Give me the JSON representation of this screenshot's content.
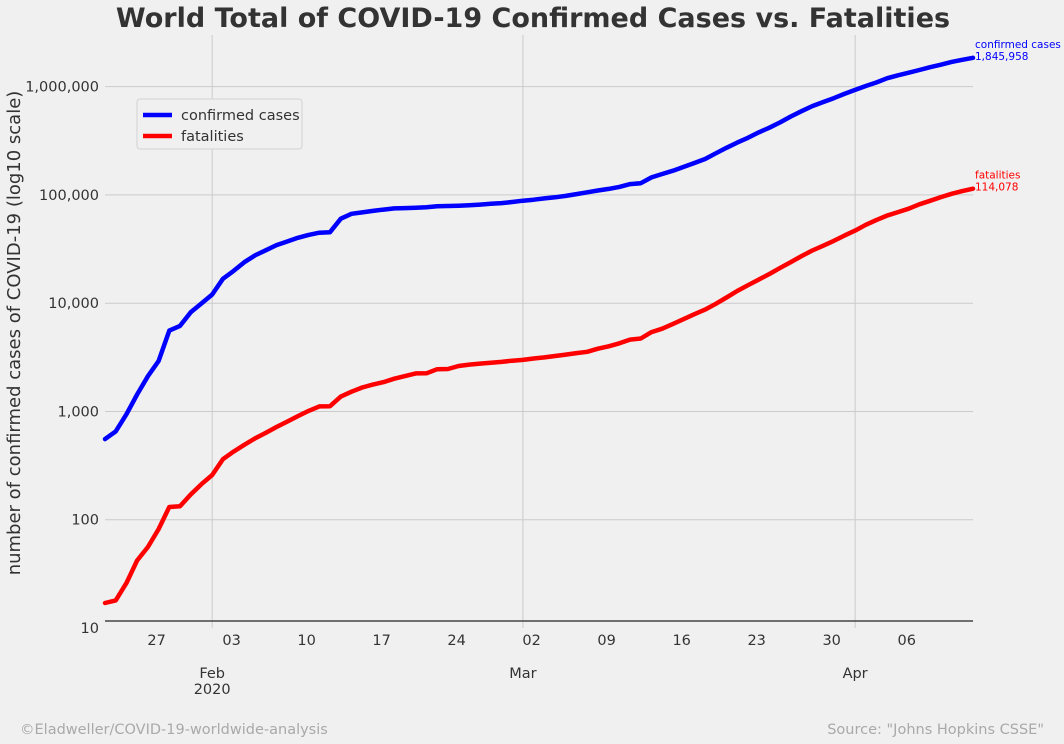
{
  "chart_data": {
    "type": "line",
    "title": "World Total of COVID-19 Confirmed Cases vs. Fatalities",
    "ylabel": "number of confirmed cases of COVID-19 (log10 scale)",
    "xlabel": "",
    "y_scale": "log10",
    "ylim": [
      10,
      3000000
    ],
    "xlim": [
      "2020-01-22",
      "2020-04-12"
    ],
    "y_ticks": [
      {
        "value": 10,
        "label": "10"
      },
      {
        "value": 100,
        "label": "100"
      },
      {
        "value": 1000,
        "label": "1,000"
      },
      {
        "value": 10000,
        "label": "10,000"
      },
      {
        "value": 100000,
        "label": "100,000"
      },
      {
        "value": 1000000,
        "label": "1,000,000"
      }
    ],
    "x_minor_ticks": [
      {
        "date": "2020-01-27",
        "label": "27"
      },
      {
        "date": "2020-02-03",
        "label": "03"
      },
      {
        "date": "2020-02-10",
        "label": "10"
      },
      {
        "date": "2020-02-17",
        "label": "17"
      },
      {
        "date": "2020-02-24",
        "label": "24"
      },
      {
        "date": "2020-03-02",
        "label": "02"
      },
      {
        "date": "2020-03-09",
        "label": "09"
      },
      {
        "date": "2020-03-16",
        "label": "16"
      },
      {
        "date": "2020-03-23",
        "label": "23"
      },
      {
        "date": "2020-03-30",
        "label": "30"
      },
      {
        "date": "2020-04-06",
        "label": "06"
      }
    ],
    "x_major_ticks": [
      {
        "date": "2020-02-01",
        "label": "Feb",
        "sublabel": "2020"
      },
      {
        "date": "2020-03-01",
        "label": "Mar",
        "sublabel": ""
      },
      {
        "date": "2020-04-01",
        "label": "Apr",
        "sublabel": ""
      }
    ],
    "grid": true,
    "legend_position": "top-left",
    "series": [
      {
        "name": "confirmed cases",
        "color": "#0000ff",
        "end_label": "confirmed cases",
        "end_value": "1,845,958",
        "points": [
          [
            "2020-01-22",
            555
          ],
          [
            "2020-01-23",
            654
          ],
          [
            "2020-01-24",
            941
          ],
          [
            "2020-01-25",
            1434
          ],
          [
            "2020-01-26",
            2118
          ],
          [
            "2020-01-27",
            2927
          ],
          [
            "2020-01-28",
            5578
          ],
          [
            "2020-01-29",
            6166
          ],
          [
            "2020-01-30",
            8234
          ],
          [
            "2020-01-31",
            9927
          ],
          [
            "2020-02-01",
            12038
          ],
          [
            "2020-02-02",
            16787
          ],
          [
            "2020-02-03",
            19881
          ],
          [
            "2020-02-04",
            23892
          ],
          [
            "2020-02-05",
            27635
          ],
          [
            "2020-02-06",
            30794
          ],
          [
            "2020-02-07",
            34391
          ],
          [
            "2020-02-08",
            37120
          ],
          [
            "2020-02-09",
            40150
          ],
          [
            "2020-02-10",
            42762
          ],
          [
            "2020-02-11",
            44802
          ],
          [
            "2020-02-12",
            45221
          ],
          [
            "2020-02-13",
            60368
          ],
          [
            "2020-02-14",
            66885
          ],
          [
            "2020-02-15",
            69030
          ],
          [
            "2020-02-16",
            71224
          ],
          [
            "2020-02-17",
            73258
          ],
          [
            "2020-02-18",
            75136
          ],
          [
            "2020-02-19",
            75639
          ],
          [
            "2020-02-20",
            76197
          ],
          [
            "2020-02-21",
            76819
          ],
          [
            "2020-02-22",
            78572
          ],
          [
            "2020-02-23",
            78958
          ],
          [
            "2020-02-24",
            79561
          ],
          [
            "2020-02-25",
            80406
          ],
          [
            "2020-02-26",
            81388
          ],
          [
            "2020-02-27",
            82746
          ],
          [
            "2020-02-28",
            84112
          ],
          [
            "2020-02-29",
            86011
          ],
          [
            "2020-03-01",
            88369
          ],
          [
            "2020-03-02",
            90306
          ],
          [
            "2020-03-03",
            92840
          ],
          [
            "2020-03-04",
            95120
          ],
          [
            "2020-03-05",
            97886
          ],
          [
            "2020-03-06",
            101801
          ],
          [
            "2020-03-07",
            105847
          ],
          [
            "2020-03-08",
            109821
          ],
          [
            "2020-03-09",
            113590
          ],
          [
            "2020-03-10",
            118620
          ],
          [
            "2020-03-11",
            125875
          ],
          [
            "2020-03-12",
            128352
          ],
          [
            "2020-03-13",
            145205
          ],
          [
            "2020-03-14",
            156101
          ],
          [
            "2020-03-15",
            167454
          ],
          [
            "2020-03-16",
            181574
          ],
          [
            "2020-03-17",
            197102
          ],
          [
            "2020-03-18",
            214821
          ],
          [
            "2020-03-19",
            242570
          ],
          [
            "2020-03-20",
            272208
          ],
          [
            "2020-03-21",
            304507
          ],
          [
            "2020-03-22",
            336953
          ],
          [
            "2020-03-23",
            378231
          ],
          [
            "2020-03-24",
            418041
          ],
          [
            "2020-03-25",
            467653
          ],
          [
            "2020-03-26",
            529591
          ],
          [
            "2020-03-27",
            593291
          ],
          [
            "2020-03-28",
            660706
          ],
          [
            "2020-03-29",
            720117
          ],
          [
            "2020-03-30",
            782365
          ],
          [
            "2020-03-31",
            857487
          ],
          [
            "2020-04-01",
            932605
          ],
          [
            "2020-04-02",
            1013157
          ],
          [
            "2020-04-03",
            1095917
          ],
          [
            "2020-04-04",
            1197405
          ],
          [
            "2020-04-05",
            1272115
          ],
          [
            "2020-04-06",
            1345101
          ],
          [
            "2020-04-07",
            1426096
          ],
          [
            "2020-04-08",
            1511104
          ],
          [
            "2020-04-09",
            1595350
          ],
          [
            "2020-04-10",
            1691719
          ],
          [
            "2020-04-11",
            1771514
          ],
          [
            "2020-04-12",
            1845958
          ]
        ]
      },
      {
        "name": "fatalities",
        "color": "#ff0000",
        "end_label": "fatalities",
        "end_value": "114,078",
        "points": [
          [
            "2020-01-22",
            17
          ],
          [
            "2020-01-23",
            18
          ],
          [
            "2020-01-24",
            26
          ],
          [
            "2020-01-25",
            42
          ],
          [
            "2020-01-26",
            56
          ],
          [
            "2020-01-27",
            82
          ],
          [
            "2020-01-28",
            131
          ],
          [
            "2020-01-29",
            133
          ],
          [
            "2020-01-30",
            171
          ],
          [
            "2020-01-31",
            213
          ],
          [
            "2020-02-01",
            259
          ],
          [
            "2020-02-02",
            362
          ],
          [
            "2020-02-03",
            426
          ],
          [
            "2020-02-04",
            492
          ],
          [
            "2020-02-05",
            564
          ],
          [
            "2020-02-06",
            634
          ],
          [
            "2020-02-07",
            719
          ],
          [
            "2020-02-08",
            806
          ],
          [
            "2020-02-09",
            906
          ],
          [
            "2020-02-10",
            1013
          ],
          [
            "2020-02-11",
            1113
          ],
          [
            "2020-02-12",
            1118
          ],
          [
            "2020-02-13",
            1371
          ],
          [
            "2020-02-14",
            1523
          ],
          [
            "2020-02-15",
            1666
          ],
          [
            "2020-02-16",
            1770
          ],
          [
            "2020-02-17",
            1868
          ],
          [
            "2020-02-18",
            2007
          ],
          [
            "2020-02-19",
            2122
          ],
          [
            "2020-02-20",
            2247
          ],
          [
            "2020-02-21",
            2251
          ],
          [
            "2020-02-22",
            2458
          ],
          [
            "2020-02-23",
            2469
          ],
          [
            "2020-02-24",
            2629
          ],
          [
            "2020-02-25",
            2708
          ],
          [
            "2020-02-26",
            2770
          ],
          [
            "2020-02-27",
            2814
          ],
          [
            "2020-02-28",
            2872
          ],
          [
            "2020-02-29",
            2941
          ],
          [
            "2020-03-01",
            2996
          ],
          [
            "2020-03-02",
            3085
          ],
          [
            "2020-03-03",
            3160
          ],
          [
            "2020-03-04",
            3254
          ],
          [
            "2020-03-05",
            3348
          ],
          [
            "2020-03-06",
            3460
          ],
          [
            "2020-03-07",
            3558
          ],
          [
            "2020-03-08",
            3803
          ],
          [
            "2020-03-09",
            3996
          ],
          [
            "2020-03-10",
            4262
          ],
          [
            "2020-03-11",
            4615
          ],
          [
            "2020-03-12",
            4720
          ],
          [
            "2020-03-13",
            5404
          ],
          [
            "2020-03-14",
            5819
          ],
          [
            "2020-03-15",
            6440
          ],
          [
            "2020-03-16",
            7126
          ],
          [
            "2020-03-17",
            7905
          ],
          [
            "2020-03-18",
            8733
          ],
          [
            "2020-03-19",
            9867
          ],
          [
            "2020-03-20",
            11299
          ],
          [
            "2020-03-21",
            12973
          ],
          [
            "2020-03-22",
            14651
          ],
          [
            "2020-03-23",
            16505
          ],
          [
            "2020-03-24",
            18625
          ],
          [
            "2020-03-25",
            21181
          ],
          [
            "2020-03-26",
            23970
          ],
          [
            "2020-03-27",
            27198
          ],
          [
            "2020-03-28",
            30652
          ],
          [
            "2020-03-29",
            33925
          ],
          [
            "2020-03-30",
            37582
          ],
          [
            "2020-03-31",
            42107
          ],
          [
            "2020-04-01",
            46809
          ],
          [
            "2020-04-02",
            52983
          ],
          [
            "2020-04-03",
            58787
          ],
          [
            "2020-04-04",
            64606
          ],
          [
            "2020-04-05",
            69374
          ],
          [
            "2020-04-06",
            74565
          ],
          [
            "2020-04-07",
            81865
          ],
          [
            "2020-04-08",
            88338
          ],
          [
            "2020-04-09",
            95455
          ],
          [
            "2020-04-10",
            102525
          ],
          [
            "2020-04-11",
            108503
          ],
          [
            "2020-04-12",
            114078
          ]
        ]
      }
    ]
  },
  "footer": {
    "left": "©Eladweller/COVID-19-worldwide-analysis",
    "right": "Source: \"Johns Hopkins CSSE\""
  }
}
